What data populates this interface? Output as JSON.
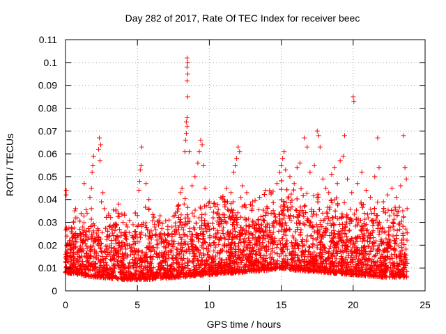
{
  "chart_data": {
    "type": "scatter",
    "title": "Day 282 of 2017, Rate Of TEC Index for receiver beec",
    "xlabel": "GPS time / hours",
    "ylabel": "ROTI / TECUs",
    "xlim": [
      0,
      25
    ],
    "ylim": [
      0,
      0.11
    ],
    "xticks": [
      0,
      5,
      10,
      15,
      20,
      25
    ],
    "xtick_labels": [
      "0",
      "5",
      "10",
      "15",
      "20",
      "25"
    ],
    "yticks": [
      0,
      0.01,
      0.02,
      0.03,
      0.04,
      0.05,
      0.06,
      0.07,
      0.08,
      0.09,
      0.1,
      0.11
    ],
    "ytick_labels": [
      "0",
      "0.01",
      "0.02",
      "0.03",
      "0.04",
      "0.05",
      "0.06",
      "0.07",
      "0.08",
      "0.09",
      "0.1",
      "0.11"
    ],
    "grid": true,
    "marker": "+",
    "color": "#ff0000",
    "series": [
      {
        "points": [
          [
            0.05,
            0.044
          ],
          [
            0.05,
            0.042
          ],
          [
            0.1,
            0.024
          ],
          [
            0.15,
            0.021
          ],
          [
            0.3,
            0.02
          ],
          [
            0.5,
            0.025
          ],
          [
            0.55,
            0.03
          ],
          [
            0.65,
            0.035
          ],
          [
            0.7,
            0.036
          ],
          [
            0.8,
            0.032
          ],
          [
            1.0,
            0.027
          ],
          [
            1.2,
            0.028
          ],
          [
            1.3,
            0.047
          ],
          [
            1.5,
            0.034
          ],
          [
            1.7,
            0.041
          ],
          [
            1.8,
            0.045
          ],
          [
            1.85,
            0.052
          ],
          [
            1.9,
            0.055
          ],
          [
            1.95,
            0.059
          ],
          [
            2.3,
            0.062
          ],
          [
            2.35,
            0.067
          ],
          [
            2.4,
            0.057
          ],
          [
            2.45,
            0.064
          ],
          [
            2.5,
            0.039
          ],
          [
            2.6,
            0.043
          ],
          [
            2.7,
            0.036
          ],
          [
            3.0,
            0.033
          ],
          [
            3.2,
            0.027
          ],
          [
            3.5,
            0.035
          ],
          [
            3.7,
            0.038
          ],
          [
            4.0,
            0.03
          ],
          [
            4.3,
            0.028
          ],
          [
            4.7,
            0.029
          ],
          [
            5.0,
            0.033
          ],
          [
            5.1,
            0.044
          ],
          [
            5.15,
            0.048
          ],
          [
            5.2,
            0.053
          ],
          [
            5.25,
            0.055
          ],
          [
            5.3,
            0.063
          ],
          [
            5.6,
            0.047
          ],
          [
            5.8,
            0.04
          ],
          [
            6.2,
            0.028
          ],
          [
            6.5,
            0.031
          ],
          [
            6.9,
            0.025
          ],
          [
            7.2,
            0.031
          ],
          [
            7.4,
            0.028
          ],
          [
            7.6,
            0.033
          ],
          [
            7.8,
            0.037
          ],
          [
            8.0,
            0.043
          ],
          [
            8.1,
            0.045
          ],
          [
            8.25,
            0.038
          ],
          [
            8.3,
            0.061
          ],
          [
            8.35,
            0.066
          ],
          [
            8.4,
            0.069
          ],
          [
            8.45,
            0.072
          ],
          [
            8.4,
            0.074
          ],
          [
            8.45,
            0.076
          ],
          [
            8.5,
            0.085
          ],
          [
            8.45,
            0.092
          ],
          [
            8.5,
            0.095
          ],
          [
            8.45,
            0.098
          ],
          [
            8.5,
            0.1
          ],
          [
            8.45,
            0.102
          ],
          [
            8.6,
            0.061
          ],
          [
            8.8,
            0.046
          ],
          [
            9.0,
            0.05
          ],
          [
            9.2,
            0.056
          ],
          [
            9.3,
            0.061
          ],
          [
            9.4,
            0.066
          ],
          [
            9.5,
            0.064
          ],
          [
            9.6,
            0.055
          ],
          [
            9.7,
            0.045
          ],
          [
            10.0,
            0.039
          ],
          [
            10.4,
            0.037
          ],
          [
            10.8,
            0.041
          ],
          [
            11.2,
            0.045
          ],
          [
            11.5,
            0.043
          ],
          [
            11.7,
            0.052
          ],
          [
            11.8,
            0.055
          ],
          [
            11.9,
            0.058
          ],
          [
            12.0,
            0.063
          ],
          [
            12.1,
            0.061
          ],
          [
            12.3,
            0.046
          ],
          [
            12.6,
            0.043
          ],
          [
            13.0,
            0.039
          ],
          [
            13.5,
            0.041
          ],
          [
            13.9,
            0.044
          ],
          [
            14.3,
            0.043
          ],
          [
            14.7,
            0.047
          ],
          [
            14.9,
            0.052
          ],
          [
            15.0,
            0.055
          ],
          [
            15.1,
            0.058
          ],
          [
            15.2,
            0.061
          ],
          [
            15.3,
            0.053
          ],
          [
            15.6,
            0.05
          ],
          [
            15.9,
            0.047
          ],
          [
            16.1,
            0.054
          ],
          [
            16.3,
            0.056
          ],
          [
            16.6,
            0.067
          ],
          [
            16.8,
            0.063
          ],
          [
            17.0,
            0.052
          ],
          [
            17.3,
            0.055
          ],
          [
            17.5,
            0.07
          ],
          [
            17.6,
            0.068
          ],
          [
            17.7,
            0.063
          ],
          [
            17.9,
            0.049
          ],
          [
            18.1,
            0.045
          ],
          [
            18.3,
            0.043
          ],
          [
            18.5,
            0.051
          ],
          [
            18.7,
            0.054
          ],
          [
            18.9,
            0.047
          ],
          [
            19.1,
            0.057
          ],
          [
            19.3,
            0.059
          ],
          [
            19.4,
            0.068
          ],
          [
            19.6,
            0.049
          ],
          [
            19.9,
            0.043
          ],
          [
            20.0,
            0.085
          ],
          [
            20.05,
            0.083
          ],
          [
            20.3,
            0.047
          ],
          [
            20.6,
            0.052
          ],
          [
            20.9,
            0.044
          ],
          [
            21.2,
            0.041
          ],
          [
            21.5,
            0.05
          ],
          [
            21.7,
            0.067
          ],
          [
            21.8,
            0.054
          ],
          [
            22.1,
            0.039
          ],
          [
            22.4,
            0.042
          ],
          [
            22.7,
            0.045
          ],
          [
            23.0,
            0.041
          ],
          [
            23.3,
            0.046
          ],
          [
            23.5,
            0.068
          ],
          [
            23.6,
            0.054
          ],
          [
            23.7,
            0.049
          ],
          [
            23.75,
            0.036
          ]
        ],
        "envelope": [
          [
            0,
            0.02
          ],
          [
            0.5,
            0.024
          ],
          [
            1,
            0.026
          ],
          [
            1.5,
            0.028
          ],
          [
            2,
            0.03
          ],
          [
            2.5,
            0.028
          ],
          [
            3,
            0.027
          ],
          [
            3.5,
            0.03
          ],
          [
            4,
            0.027
          ],
          [
            4.5,
            0.025
          ],
          [
            5,
            0.029
          ],
          [
            5.5,
            0.031
          ],
          [
            6,
            0.026
          ],
          [
            6.5,
            0.027
          ],
          [
            7,
            0.025
          ],
          [
            7.5,
            0.027
          ],
          [
            8,
            0.032
          ],
          [
            8.5,
            0.033
          ],
          [
            9,
            0.03
          ],
          [
            9.5,
            0.029
          ],
          [
            10,
            0.031
          ],
          [
            10.5,
            0.032
          ],
          [
            11,
            0.034
          ],
          [
            11.5,
            0.033
          ],
          [
            12,
            0.034
          ],
          [
            12.5,
            0.032
          ],
          [
            13,
            0.031
          ],
          [
            13.5,
            0.033
          ],
          [
            14,
            0.035
          ],
          [
            14.5,
            0.038
          ],
          [
            15,
            0.041
          ],
          [
            15.5,
            0.039
          ],
          [
            16,
            0.036
          ],
          [
            16.5,
            0.038
          ],
          [
            17,
            0.035
          ],
          [
            17.5,
            0.036
          ],
          [
            18,
            0.034
          ],
          [
            18.5,
            0.035
          ],
          [
            19,
            0.033
          ],
          [
            19.5,
            0.034
          ],
          [
            20,
            0.031
          ],
          [
            20.5,
            0.032
          ],
          [
            21,
            0.03
          ],
          [
            21.5,
            0.033
          ],
          [
            22,
            0.029
          ],
          [
            22.5,
            0.028
          ],
          [
            23,
            0.029
          ],
          [
            23.7,
            0.03
          ]
        ],
        "baseline": [
          [
            0,
            0.008
          ],
          [
            2,
            0.006
          ],
          [
            4,
            0.005
          ],
          [
            6,
            0.005
          ],
          [
            8,
            0.006
          ],
          [
            10,
            0.007
          ],
          [
            12,
            0.008
          ],
          [
            14,
            0.009
          ],
          [
            15,
            0.01
          ],
          [
            16,
            0.009
          ],
          [
            18,
            0.008
          ],
          [
            20,
            0.007
          ],
          [
            22,
            0.006
          ],
          [
            23.7,
            0.006
          ]
        ]
      }
    ]
  }
}
